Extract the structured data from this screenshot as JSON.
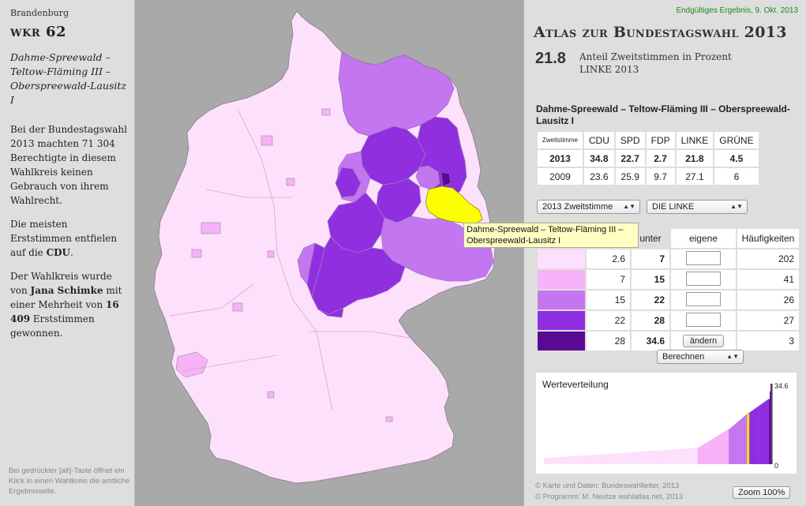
{
  "left": {
    "region": "Brandenburg",
    "wkr_title": "wkr 62",
    "wkr_name": "Dahme-Spreewald – Teltow-Fläming III – Oberspreewald-Lausitz I",
    "para1": "Bei der Bundestagswahl 2013 machten 71 304 Berechtigte in diesem Wahlkreis keinen Gebrauch von ihrem Wahlrecht.",
    "para2_pre": "Die meisten Erststimmen entfielen auf die ",
    "para2_party": "CDU",
    "para2_post": ".",
    "para3_pre": "Der Wahlkreis wurde von ",
    "para3_name": "Jana Schimke",
    "para3_mid": " mit einer Mehrheit von ",
    "para3_num": "16 409",
    "para3_post": " Erststimmen gewonnen.",
    "hint": "Bei gedrückter [alt]-Taste öffnet ein Klick in einen Wahlkreis die amtliche Ergebnisseite."
  },
  "header": {
    "final_result": "Endgültiges Ergebnis, 9. Okt. 2013",
    "title": "Atlas zur Bundestagswahl 2013",
    "value": "21.8",
    "value_desc_line1": "Anteil Zweitstimmen in Prozent",
    "value_desc_line2": "LINKE 2013"
  },
  "constituency_full": "Dahme-Spreewald – Teltow-Fläming III – Oberspreewald-Lausitz I",
  "results": {
    "headers": [
      "Zweitstimme",
      "CDU",
      "SPD",
      "FDP",
      "LINKE",
      "GRÜNE"
    ],
    "rows": [
      [
        "2013",
        "34.8",
        "22.7",
        "2.7",
        "21.8",
        "4.5"
      ],
      [
        "2009",
        "23.6",
        "25.9",
        "9.7",
        "27.1",
        "6"
      ]
    ]
  },
  "controls": {
    "vote_select": "2013 Zweitstimme",
    "party_select": "DIE LINKE",
    "calc_select": "Berechnen"
  },
  "classes": {
    "headers": [
      "",
      "",
      "unter",
      "eigene",
      "Häufigkeiten"
    ],
    "change_label": "ändern",
    "rows": [
      {
        "color": "#fde0fb",
        "from": "2.6",
        "to": "7",
        "freq": "202"
      },
      {
        "color": "#f6b3f7",
        "from": "7",
        "to": "15",
        "freq": "41"
      },
      {
        "color": "#c476f0",
        "from": "15",
        "to": "22",
        "freq": "26"
      },
      {
        "color": "#8f2fe0",
        "from": "22",
        "to": "28",
        "freq": "27"
      },
      {
        "color": "#5a0a92",
        "from": "28",
        "to": "34.6",
        "freq": "3"
      }
    ]
  },
  "histogram": {
    "title": "Werteverteilung",
    "max_label": "34.6",
    "min_label": "0"
  },
  "chart_data": {
    "type": "area",
    "title": "Werteverteilung",
    "xlabel": "",
    "ylabel": "",
    "ylim": [
      0,
      34.6
    ],
    "class_colors": [
      "#fde0fb",
      "#f6b3f7",
      "#c476f0",
      "#8f2fe0",
      "#5a0a92"
    ],
    "class_breaks": [
      2.6,
      7,
      15,
      22,
      28,
      34.6
    ],
    "highlight_value": 21.8,
    "highlight_color": "#f5e400",
    "sorted_values_by_class": [
      {
        "class": 1,
        "count": 202,
        "from": 2.6,
        "to": 7
      },
      {
        "class": 2,
        "count": 41,
        "from": 7,
        "to": 15
      },
      {
        "class": 3,
        "count": 26,
        "from": 15,
        "to": 22
      },
      {
        "class": 4,
        "count": 27,
        "from": 22,
        "to": 28
      },
      {
        "class": 5,
        "count": 3,
        "from": 28,
        "to": 34.6
      }
    ]
  },
  "credits": {
    "line1": "© Karte und Daten: Bundeswahlleiter, 2013",
    "line2": "© Programm: M. Neutze wahlatlas.net, 2013",
    "zoom": "Zoom 100%"
  },
  "tooltip": {
    "line1": "Dahme-Spreewald – Teltow-Fläming III –",
    "line2": "Oberspreewald-Lausitz I"
  },
  "map": {
    "colors": {
      "low": "#fde0fb",
      "mid": "#f6b3f7",
      "midhigh": "#c476f0",
      "high": "#8f2fe0",
      "max": "#5a0a92",
      "selected": "#fdff00",
      "border": "#8a7a8a"
    }
  }
}
